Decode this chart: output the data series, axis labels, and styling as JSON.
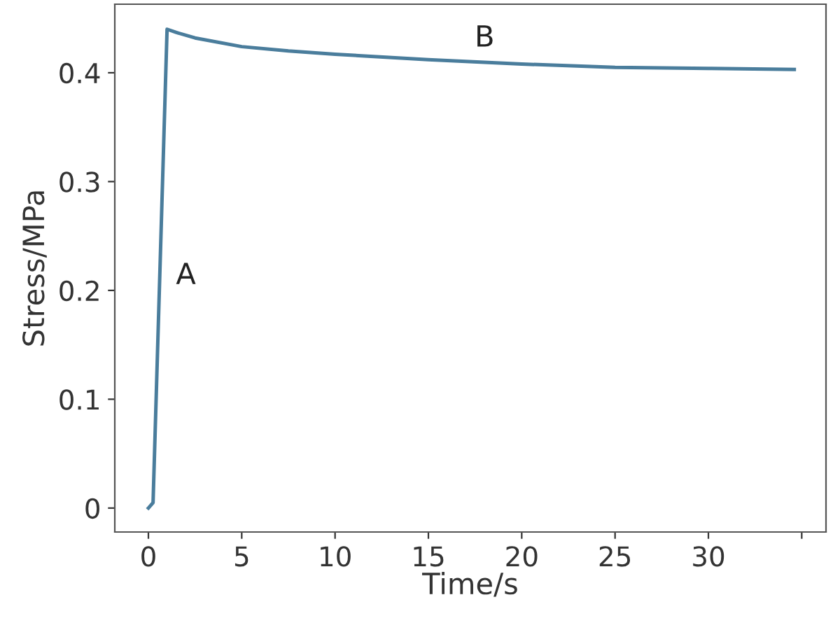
{
  "chart_data": {
    "type": "line",
    "xlabel": "Time/s",
    "ylabel": "Stress/MPa",
    "x": [
      0,
      0.25,
      1.0,
      1.5,
      2.5,
      5,
      7.5,
      10,
      15,
      20,
      25,
      30,
      34.6
    ],
    "series": [
      {
        "color": "#4a7d9c",
        "values": [
          0,
          0.005,
          0.44,
          0.437,
          0.432,
          0.424,
          0.42,
          0.417,
          0.412,
          0.408,
          0.405,
          0.404,
          0.403
        ]
      }
    ],
    "xlim": [
      -1.8,
      36.3
    ],
    "ylim": [
      -0.022,
      0.463
    ],
    "xticks": [
      0,
      5,
      10,
      15,
      20,
      25,
      30,
      {
        "value": 35,
        "label": null
      }
    ],
    "yticks": [
      0,
      0.1,
      0.2,
      0.3,
      0.4
    ],
    "annotations": [
      "A",
      "B"
    ],
    "grid": false,
    "marker": "none",
    "line_style": "solid"
  }
}
